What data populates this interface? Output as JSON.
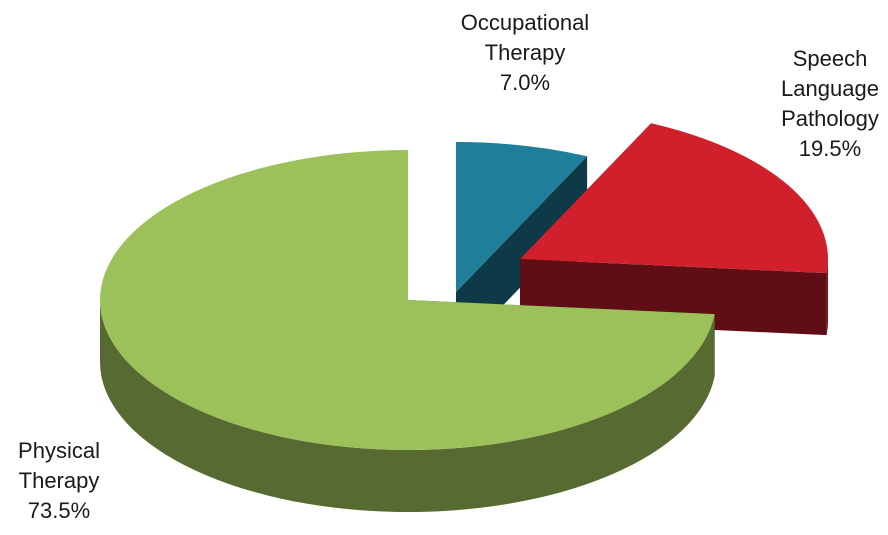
{
  "chart_data": {
    "type": "pie",
    "categories": [
      "Occupational Therapy",
      "Speech Language Pathology",
      "Physical Therapy"
    ],
    "values": [
      7.0,
      19.5,
      73.5
    ],
    "value_labels": [
      "7.0%",
      "19.5%",
      "73.5%"
    ],
    "colors": [
      "#1f7f9b",
      "#d0202c",
      "#9dc15a"
    ]
  }
}
